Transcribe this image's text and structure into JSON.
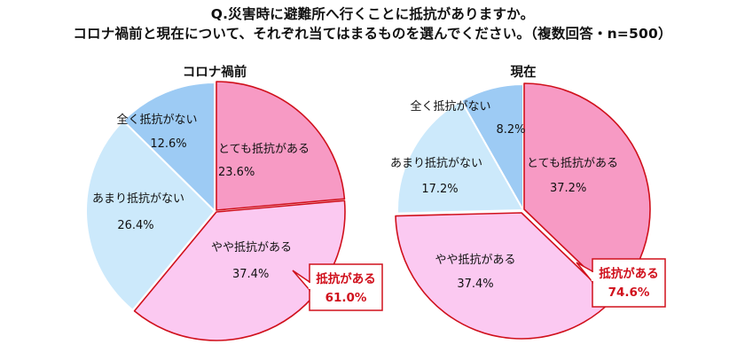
{
  "title": {
    "line1": "Q.災害時に避難所へ行くことに抵抗がありますか。",
    "line2": "コロナ禍前と現在について、それぞれ当てはまるものを選んでください。（複数回答・n=500）"
  },
  "chart_data": [
    {
      "type": "pie",
      "title": "コロナ禍前",
      "slices": [
        {
          "label": "とても抵抗がある",
          "value": 23.6,
          "display": "23.6%",
          "color": "#f79ac4"
        },
        {
          "label": "やや抵抗がある",
          "value": 37.4,
          "display": "37.4%",
          "color": "#fbc9f1"
        },
        {
          "label": "あまり抵抗がない",
          "value": 26.4,
          "display": "26.4%",
          "color": "#cce9fb"
        },
        {
          "label": "全く抵抗がない",
          "value": 12.6,
          "display": "12.6%",
          "color": "#9dcbf4"
        }
      ],
      "callout": {
        "label": "抵抗がある",
        "value": "61.0%"
      },
      "highlight_color": "#d0101c"
    },
    {
      "type": "pie",
      "title": "現在",
      "slices": [
        {
          "label": "とても抵抗がある",
          "value": 37.2,
          "display": "37.2%",
          "color": "#f79ac4"
        },
        {
          "label": "やや抵抗がある",
          "value": 37.4,
          "display": "37.4%",
          "color": "#fbc9f1"
        },
        {
          "label": "あまり抵抗がない",
          "value": 17.2,
          "display": "17.2%",
          "color": "#cce9fb"
        },
        {
          "label": "全く抵抗がない",
          "value": 8.2,
          "display": "8.2%",
          "color": "#9dcbf4"
        }
      ],
      "callout": {
        "label": "抵抗がある",
        "value": "74.6%"
      },
      "highlight_color": "#d0101c"
    }
  ]
}
